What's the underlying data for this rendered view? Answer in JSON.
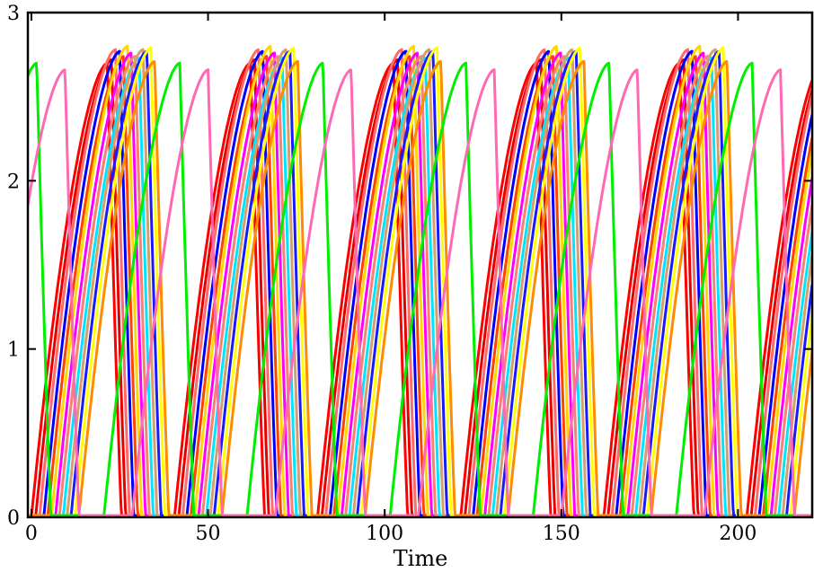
{
  "chart_data": {
    "type": "line",
    "xlabel": "Time",
    "ylabel": "",
    "xlim": [
      -1,
      221
    ],
    "ylim": [
      0,
      3
    ],
    "xticks": [
      "0",
      "50",
      "100",
      "150",
      "200"
    ],
    "yticks": [
      "0",
      "1",
      "2",
      "3"
    ],
    "grid": false,
    "legend": "none",
    "period": 40.5,
    "series": [
      {
        "color": "#ff0000",
        "phase": 0.0,
        "peak": 2.7
      },
      {
        "color": "#e80000",
        "phase": 1.2,
        "peak": 2.72
      },
      {
        "color": "#ff6a6a",
        "phase": 2.3,
        "peak": 2.78
      },
      {
        "color": "#0000ff",
        "phase": 3.5,
        "peak": 2.77
      },
      {
        "color": "#ff4400",
        "phase": 4.6,
        "peak": 2.74
      },
      {
        "color": "#ffd700",
        "phase": 5.7,
        "peak": 2.8
      },
      {
        "color": "#ff00ff",
        "phase": 6.8,
        "peak": 2.76
      },
      {
        "color": "#fa8072",
        "phase": 7.9,
        "peak": 2.74
      },
      {
        "color": "#00e5ff",
        "phase": 9.0,
        "peak": 2.73
      },
      {
        "color": "#d2a06e",
        "phase": 10.1,
        "peak": 2.78
      },
      {
        "color": "#1a1aff",
        "phase": 11.2,
        "peak": 2.77
      },
      {
        "color": "#ffff00",
        "phase": 12.3,
        "peak": 2.79
      },
      {
        "color": "#ff8c00",
        "phase": 13.4,
        "peak": 2.71
      },
      {
        "color": "#00ee00",
        "phase": 20.5,
        "peak": 2.7
      },
      {
        "color": "#ff69b4",
        "phase": 28.5,
        "peak": 2.66
      }
    ]
  }
}
